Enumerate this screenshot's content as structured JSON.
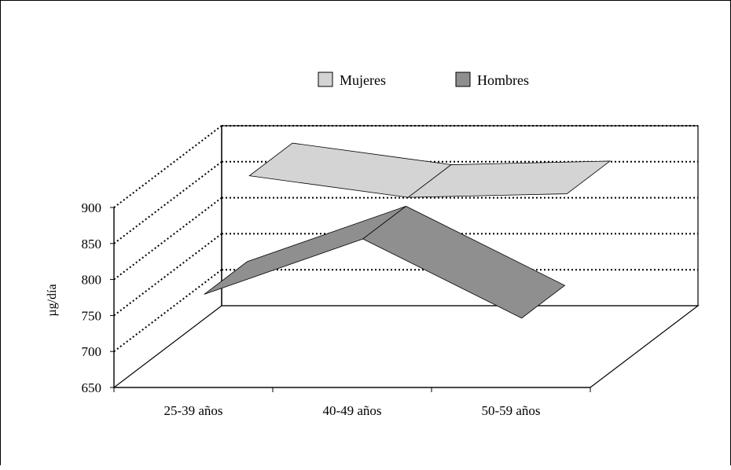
{
  "chart_data": {
    "type": "area",
    "title": "",
    "xlabel": "",
    "ylabel": "µg/día",
    "categories": [
      "25-39 años",
      "40-49 años",
      "50-59 años"
    ],
    "yticks": [
      650,
      700,
      750,
      800,
      850,
      900
    ],
    "ylim": [
      650,
      900
    ],
    "grid": true,
    "legend_position": "top-center",
    "series": [
      {
        "name": "Mujeres",
        "values": [
          885,
          855,
          860
        ],
        "color": "#d4d4d4"
      },
      {
        "name": "Hombres",
        "values": [
          768,
          845,
          735
        ],
        "color": "#8f8f8f"
      }
    ]
  },
  "colors": {
    "background": "#ffffff",
    "gridline": "#000000"
  }
}
